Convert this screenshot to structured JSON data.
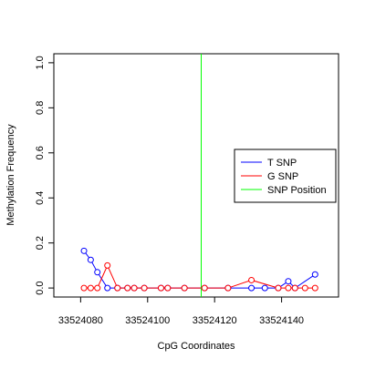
{
  "chart_data": {
    "type": "line",
    "title": "",
    "xlabel": "CpG Coordinates",
    "ylabel": "Methylation Frequency",
    "xlim": [
      33524072,
      33524157
    ],
    "ylim": [
      -0.04,
      1.04
    ],
    "x_ticks": [
      33524080,
      33524100,
      33524120,
      33524140
    ],
    "x_tick_labels": [
      "33524080",
      "33524100",
      "33524120",
      "33524140"
    ],
    "y_ticks": [
      0.0,
      0.2,
      0.4,
      0.6,
      0.8,
      1.0
    ],
    "y_tick_labels": [
      "0.0",
      "0.2",
      "0.4",
      "0.6",
      "0.8",
      "1.0"
    ],
    "grid": false,
    "legend_position": "right",
    "series": [
      {
        "name": "T SNP",
        "color": "#0000ff",
        "x": [
          33524081,
          33524083,
          33524085,
          33524088,
          33524091,
          33524094,
          33524096,
          33524099,
          33524104,
          33524106,
          33524111,
          33524117,
          33524124,
          33524131,
          33524135,
          33524139,
          33524142,
          33524144,
          33524150
        ],
        "values": [
          0.165,
          0.125,
          0.07,
          0.0,
          0.0,
          0.0,
          0.0,
          0.0,
          0.0,
          0.0,
          0.0,
          0.0,
          0.0,
          0.0,
          0.0,
          0.0,
          0.03,
          0.0,
          0.06
        ]
      },
      {
        "name": "G SNP",
        "color": "#ff0000",
        "x": [
          33524081,
          33524083,
          33524085,
          33524088,
          33524091,
          33524094,
          33524096,
          33524099,
          33524104,
          33524106,
          33524111,
          33524117,
          33524124,
          33524131,
          33524139,
          33524142,
          33524144,
          33524147,
          33524150
        ],
        "values": [
          0.0,
          0.0,
          0.0,
          0.1,
          0.0,
          0.0,
          0.0,
          0.0,
          0.0,
          0.0,
          0.0,
          0.0,
          0.0,
          0.035,
          0.0,
          0.0,
          0.0,
          0.0,
          0.0
        ]
      }
    ],
    "vline": {
      "name": "SNP Position",
      "color": "#00ff00",
      "x": 33524116
    }
  }
}
